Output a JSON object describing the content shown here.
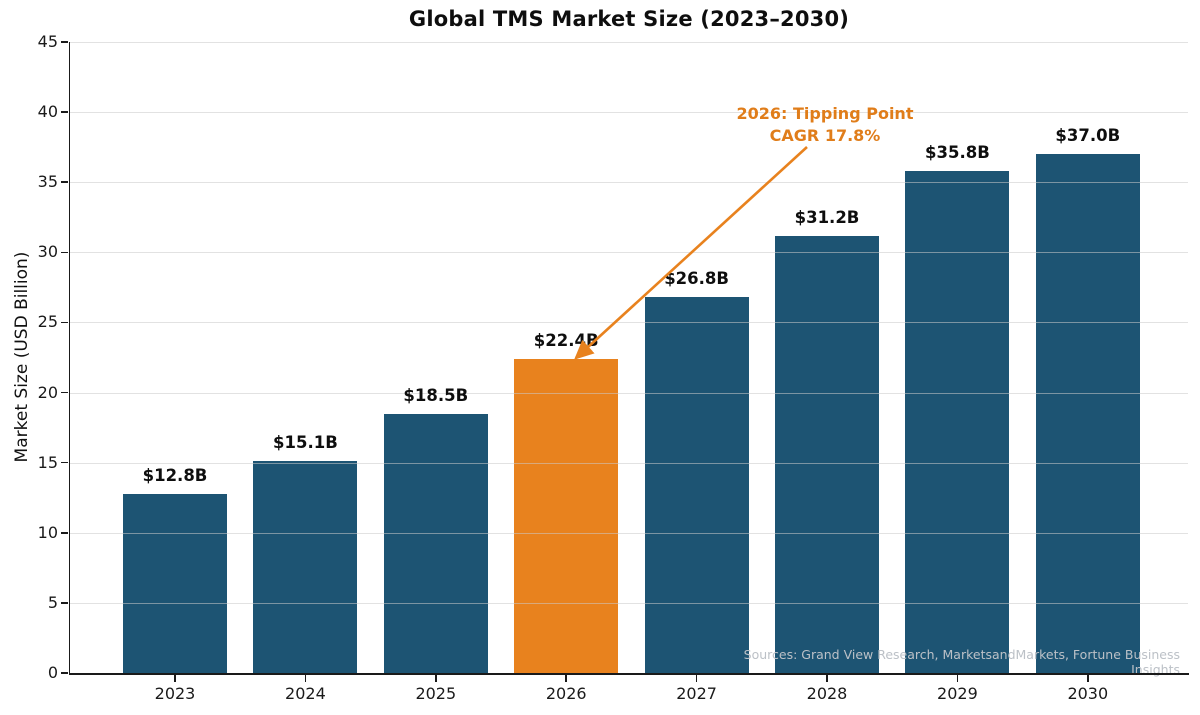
{
  "chart_data": {
    "type": "bar",
    "title": "Global TMS Market Size (2023–2030)",
    "ylabel": "Market Size (USD Billion)",
    "xlabel": "",
    "categories": [
      "2023",
      "2024",
      "2025",
      "2026",
      "2027",
      "2028",
      "2029",
      "2030"
    ],
    "values": [
      12.8,
      15.1,
      18.5,
      22.4,
      26.8,
      31.2,
      35.8,
      37.0
    ],
    "value_labels": [
      "$12.8B",
      "$15.1B",
      "$18.5B",
      "$22.4B",
      "$26.8B",
      "$31.2B",
      "$35.8B",
      "$37.0B"
    ],
    "ylim": [
      0,
      45
    ],
    "yticks": [
      0,
      5,
      10,
      15,
      20,
      25,
      30,
      35,
      40,
      45
    ],
    "grid": "horizontal",
    "legend": "none",
    "bar_color": "#1d5473",
    "highlight_color": "#e8821e",
    "highlight_index": 3,
    "annotation": {
      "line1": "2026: Tipping Point",
      "line2": "CAGR 17.8%",
      "color": "#e07d1a",
      "target_category": "2026"
    },
    "source": "Sources: Grand View Research, MarketsandMarkets, Fortune Business Insights"
  }
}
